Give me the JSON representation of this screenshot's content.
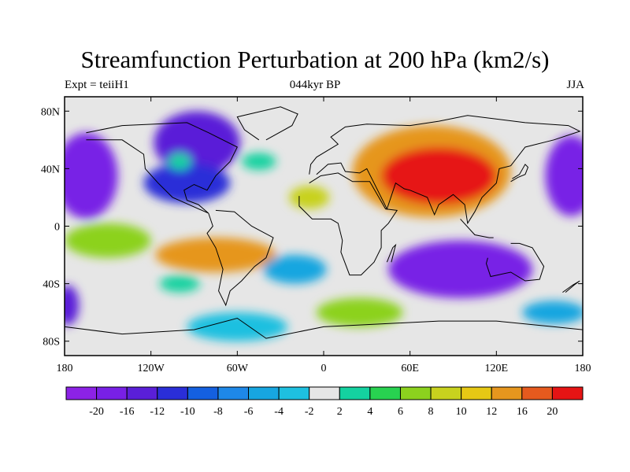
{
  "title": "Streamfunction Perturbation at 200 hPa (km2/s)",
  "subtitle_left": "Expt = teiiH1",
  "subtitle_center": "044kyr BP",
  "subtitle_right": "JJA",
  "map": {
    "projection": "cylindrical equidistant",
    "lon_range": [
      -180,
      180
    ],
    "lat_range": [
      -90,
      90
    ],
    "lat_ticks": [
      {
        "value": 80,
        "label": "80N"
      },
      {
        "value": 40,
        "label": "40N"
      },
      {
        "value": 0,
        "label": "0"
      },
      {
        "value": -40,
        "label": "40S"
      },
      {
        "value": -80,
        "label": "80S"
      }
    ],
    "lon_ticks": [
      {
        "value": -180,
        "label": "180"
      },
      {
        "value": -120,
        "label": "120W"
      },
      {
        "value": -60,
        "label": "60W"
      },
      {
        "value": 0,
        "label": "0"
      },
      {
        "value": 60,
        "label": "60E"
      },
      {
        "value": 120,
        "label": "120E"
      },
      {
        "value": 180,
        "label": "180"
      }
    ],
    "background_color": "#e6e6e6",
    "features": [
      {
        "lon": -165,
        "lat": 35,
        "rx": 22,
        "ry": 30,
        "level": -20
      },
      {
        "lon": 172,
        "lat": 35,
        "rx": 18,
        "ry": 28,
        "level": -20
      },
      {
        "lon": -88,
        "lat": 58,
        "rx": 30,
        "ry": 22,
        "level": -16
      },
      {
        "lon": -95,
        "lat": 30,
        "rx": 30,
        "ry": 14,
        "level": -12
      },
      {
        "lon": -100,
        "lat": 45,
        "rx": 8,
        "ry": 6,
        "level": 2
      },
      {
        "lon": -45,
        "lat": 45,
        "rx": 12,
        "ry": 6,
        "level": 2
      },
      {
        "lon": 75,
        "lat": 38,
        "rx": 55,
        "ry": 32,
        "level": 12
      },
      {
        "lon": 80,
        "lat": 35,
        "rx": 40,
        "ry": 20,
        "level": 20
      },
      {
        "lon": -75,
        "lat": -20,
        "rx": 42,
        "ry": 12,
        "level": 12
      },
      {
        "lon": -150,
        "lat": -10,
        "rx": 30,
        "ry": 12,
        "level": 6
      },
      {
        "lon": -10,
        "lat": 20,
        "rx": 14,
        "ry": 8,
        "level": 8
      },
      {
        "lon": 95,
        "lat": -30,
        "rx": 50,
        "ry": 20,
        "level": -20
      },
      {
        "lon": 160,
        "lat": -60,
        "rx": 22,
        "ry": 8,
        "level": -6
      },
      {
        "lon": -178,
        "lat": -55,
        "rx": 8,
        "ry": 14,
        "level": -16
      },
      {
        "lon": -20,
        "lat": -30,
        "rx": 22,
        "ry": 10,
        "level": -6
      },
      {
        "lon": -100,
        "lat": -40,
        "rx": 14,
        "ry": 6,
        "level": 2
      },
      {
        "lon": 25,
        "lat": -60,
        "rx": 30,
        "ry": 10,
        "level": 6
      },
      {
        "lon": -60,
        "lat": -70,
        "rx": 35,
        "ry": 10,
        "level": -4
      }
    ]
  },
  "colorbar": {
    "labels": [
      "-20",
      "-16",
      "-12",
      "-10",
      "-8",
      "-6",
      "-4",
      "-2",
      "2",
      "4",
      "6",
      "8",
      "10",
      "12",
      "16",
      "20"
    ],
    "colors": [
      "#8c22e6",
      "#7820e6",
      "#5a1fd8",
      "#2a2ed8",
      "#1460e0",
      "#1e88e8",
      "#17a6e0",
      "#1ec0e0",
      "#e6e6e6",
      "#14d2a0",
      "#28d250",
      "#8cd21e",
      "#c8d21e",
      "#e6c814",
      "#e6961e",
      "#e65a1e",
      "#e61414"
    ]
  }
}
